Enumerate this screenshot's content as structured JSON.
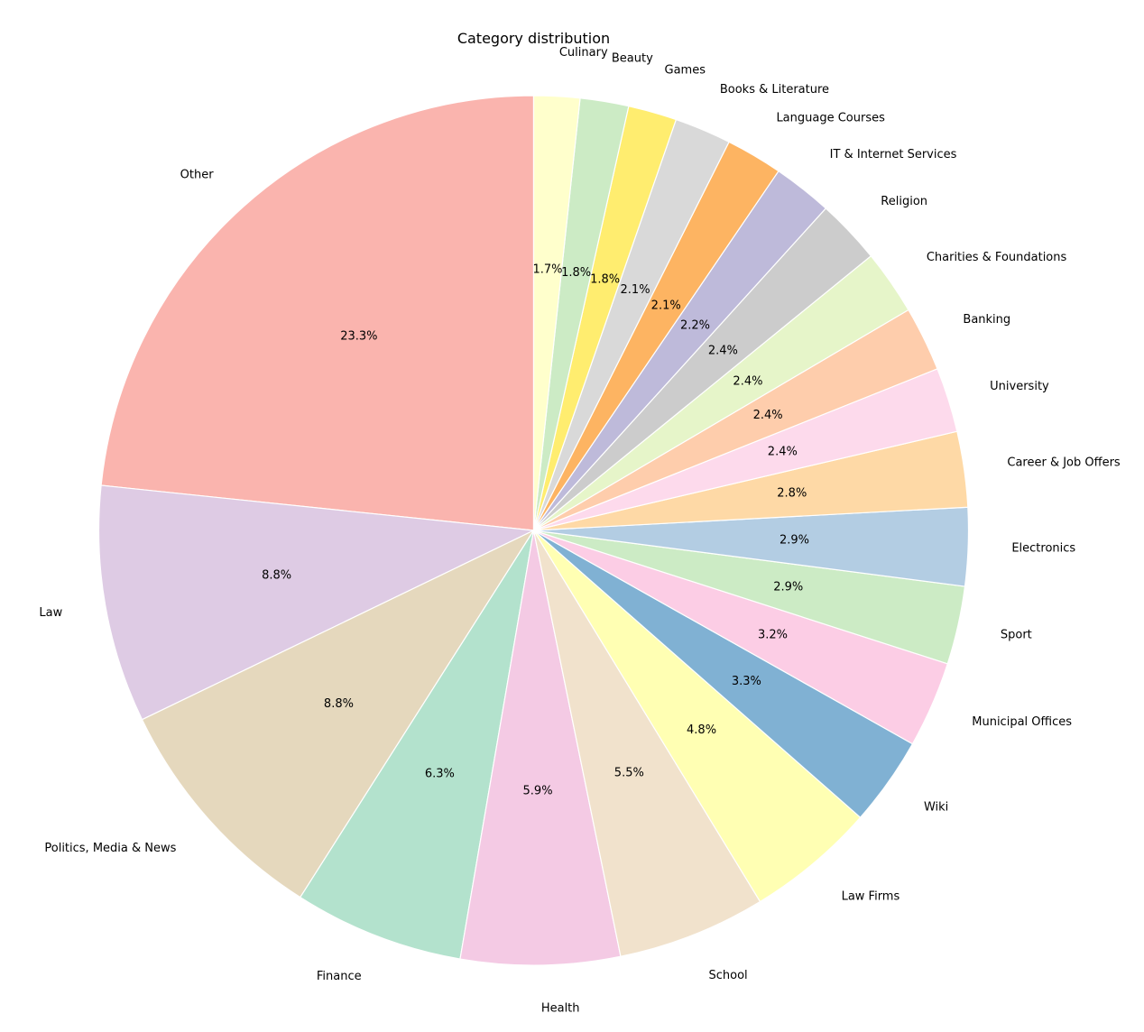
{
  "chart_data": {
    "type": "pie",
    "title": "Category distribution",
    "start_angle_deg": 90,
    "direction": "counterclockwise",
    "edge_color": "#ffffff",
    "slices": [
      {
        "label": "Other",
        "value": 23.3,
        "pct_label": "23.3%",
        "color": "#fab4ae"
      },
      {
        "label": "Law",
        "value": 8.8,
        "pct_label": "8.8%",
        "color": "#decbe4"
      },
      {
        "label": "Politics, Media & News",
        "value": 8.8,
        "pct_label": "8.8%",
        "color": "#e5d8bd"
      },
      {
        "label": "Finance",
        "value": 6.3,
        "pct_label": "6.3%",
        "color": "#b3e2cd"
      },
      {
        "label": "Health",
        "value": 5.9,
        "pct_label": "5.9%",
        "color": "#f4cae4"
      },
      {
        "label": "School",
        "value": 5.5,
        "pct_label": "5.5%",
        "color": "#f1e2cc"
      },
      {
        "label": "Law Firms",
        "value": 4.8,
        "pct_label": "4.8%",
        "color": "#ffffb3"
      },
      {
        "label": "Wiki",
        "value": 3.3,
        "pct_label": "3.3%",
        "color": "#80b1d3"
      },
      {
        "label": "Municipal Offices",
        "value": 3.2,
        "pct_label": "3.2%",
        "color": "#fccde5"
      },
      {
        "label": "Sport",
        "value": 2.9,
        "pct_label": "2.9%",
        "color": "#ccebc5"
      },
      {
        "label": "Electronics",
        "value": 2.9,
        "pct_label": "2.9%",
        "color": "#b3cde3"
      },
      {
        "label": "Career & Job Offers",
        "value": 2.8,
        "pct_label": "2.8%",
        "color": "#fed9a6"
      },
      {
        "label": "University",
        "value": 2.4,
        "pct_label": "2.4%",
        "color": "#fddaec"
      },
      {
        "label": "Banking",
        "value": 2.4,
        "pct_label": "2.4%",
        "color": "#fecdac"
      },
      {
        "label": "Charities & Foundations",
        "value": 2.4,
        "pct_label": "2.4%",
        "color": "#e6f5c9"
      },
      {
        "label": "Religion",
        "value": 2.4,
        "pct_label": "2.4%",
        "color": "#cccccc"
      },
      {
        "label": "IT & Internet Services",
        "value": 2.2,
        "pct_label": "2.2%",
        "color": "#bebada"
      },
      {
        "label": "Language Courses",
        "value": 2.1,
        "pct_label": "2.1%",
        "color": "#fdb462"
      },
      {
        "label": "Books & Literature",
        "value": 2.1,
        "pct_label": "2.1%",
        "color": "#d9d9d9"
      },
      {
        "label": "Games",
        "value": 1.8,
        "pct_label": "1.8%",
        "color": "#ffed6f"
      },
      {
        "label": "Beauty",
        "value": 1.8,
        "pct_label": "1.8%",
        "color": "#ccebc5"
      },
      {
        "label": "Culinary",
        "value": 1.7,
        "pct_label": "1.7%",
        "color": "#ffffcc"
      }
    ]
  }
}
